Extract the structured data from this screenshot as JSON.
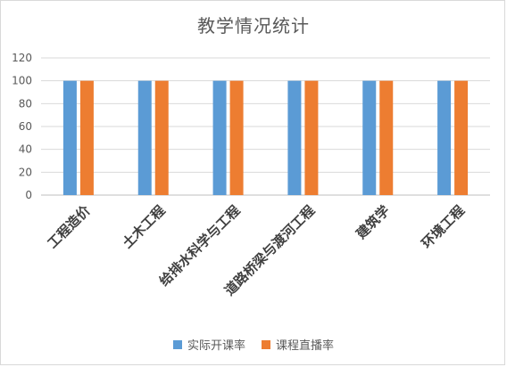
{
  "chart_data": {
    "type": "bar",
    "title": "教学情况统计",
    "xlabel": "",
    "ylabel": "",
    "ylim": [
      0,
      120
    ],
    "yticks": [
      0,
      20,
      40,
      60,
      80,
      100,
      120
    ],
    "grid": true,
    "legend_position": "bottom",
    "categories": [
      "工程造价",
      "土木工程",
      "给排水科学与工程",
      "道路桥梁与渡河工程",
      "建筑学",
      "环境工程"
    ],
    "series": [
      {
        "name": "实际开课率",
        "values": [
          100,
          100,
          100,
          100,
          100,
          100
        ],
        "color": "#5b9bd5"
      },
      {
        "name": "课程直播率",
        "values": [
          100,
          100,
          100,
          100,
          100,
          100
        ],
        "color": "#ed7d31"
      }
    ]
  }
}
